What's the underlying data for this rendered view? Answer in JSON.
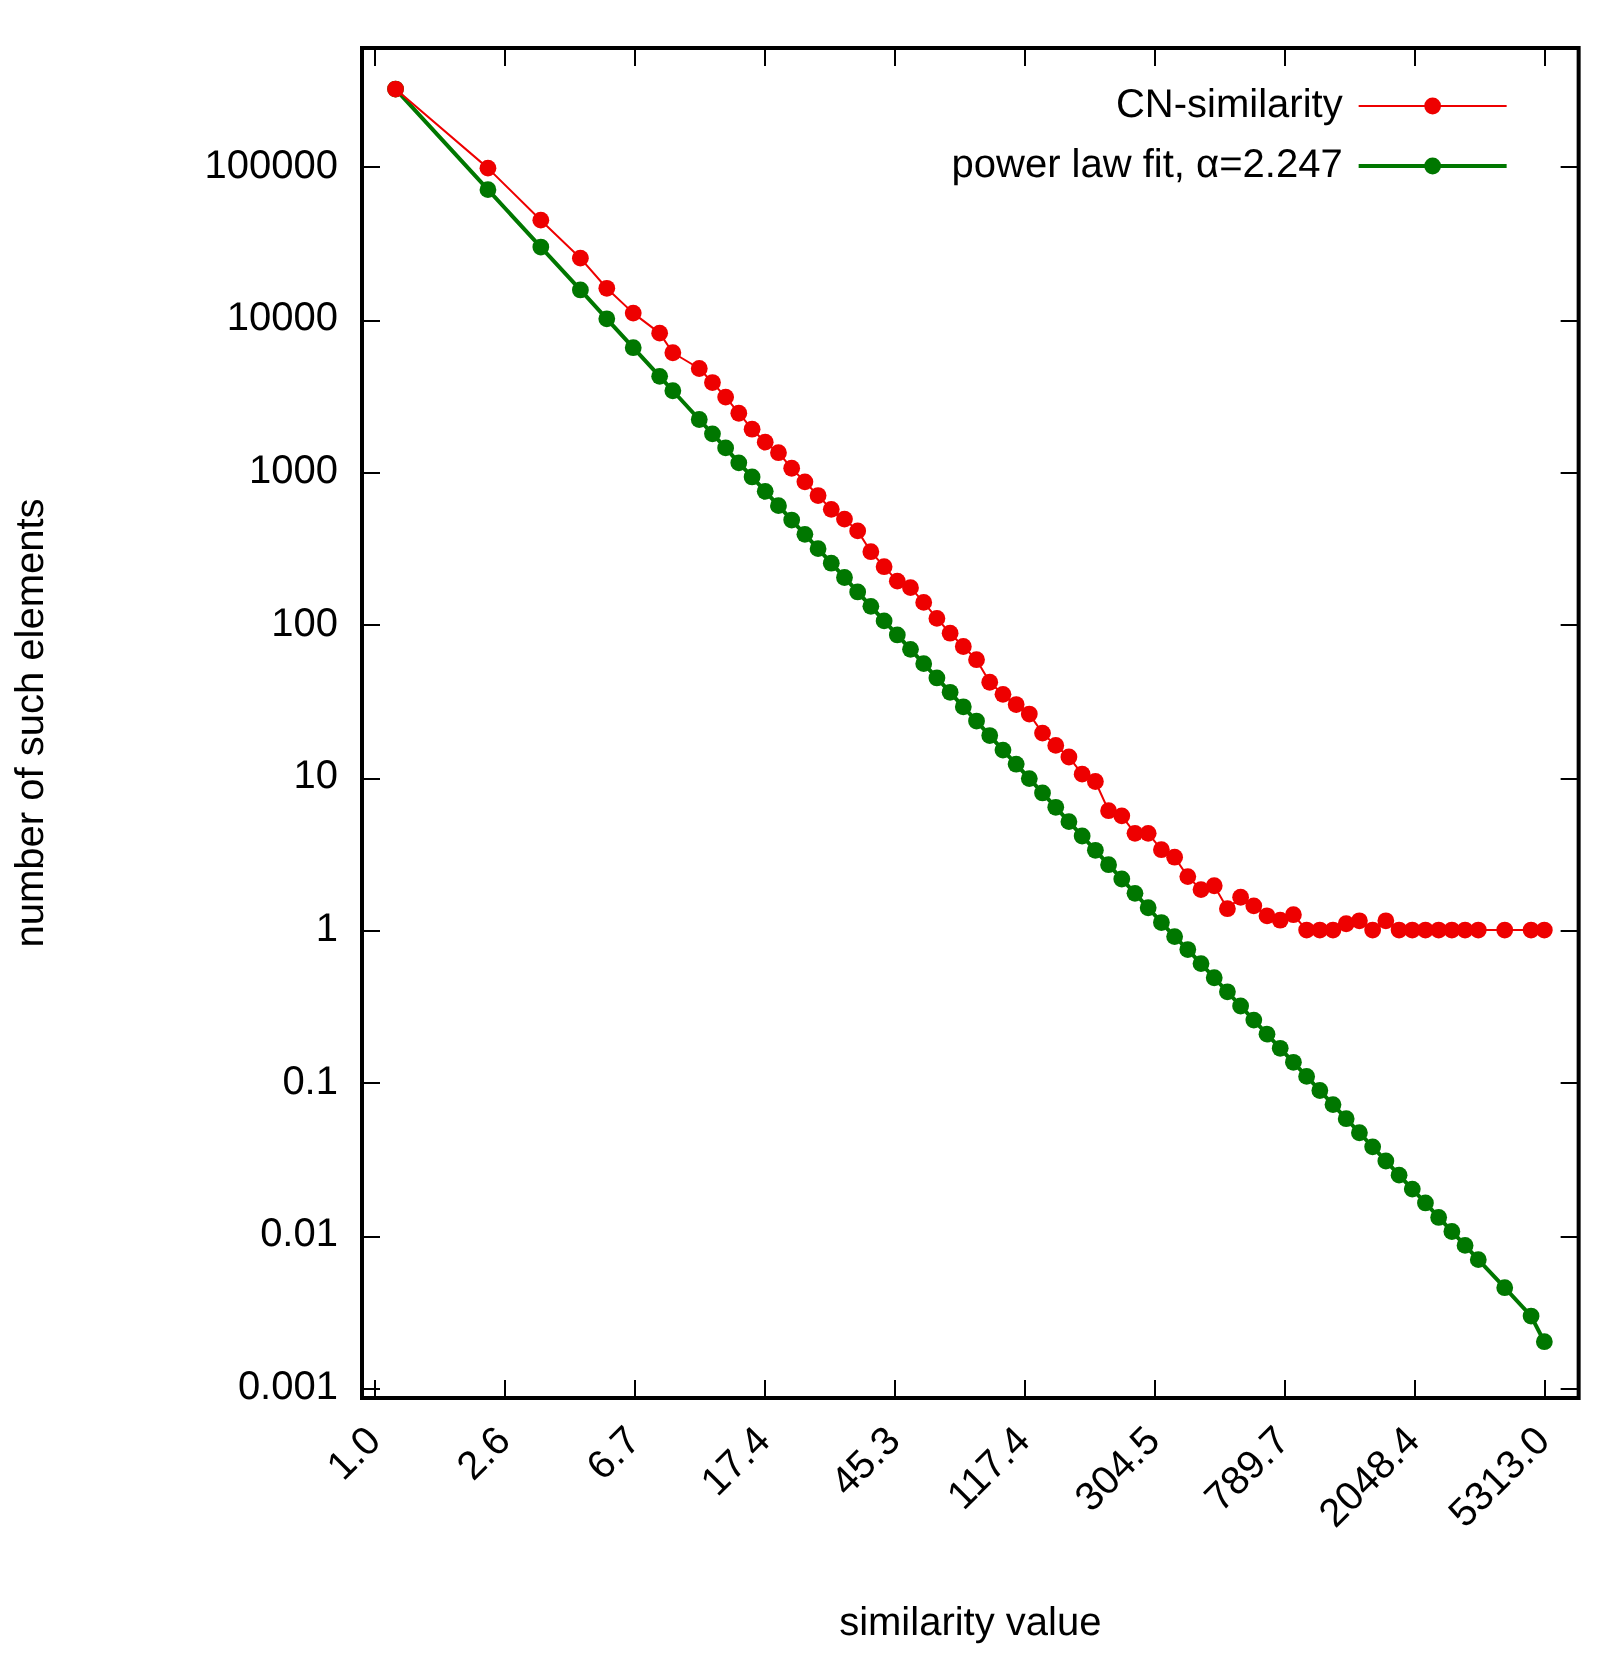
{
  "chart_data": {
    "type": "line",
    "xlabel": "similarity value",
    "ylabel": "number of such elements",
    "log": "xy",
    "grid": false,
    "legend": "top right",
    "marker": "circle",
    "line_style": "solid",
    "xlim": [
      0.91,
      6860
    ],
    "ylim": [
      0.00086,
      600000
    ],
    "xticks": [
      {
        "value": 1,
        "label": "1.0"
      },
      {
        "value": 2.594,
        "label": "2.6"
      },
      {
        "value": 6.727,
        "label": "6.7"
      },
      {
        "value": 17.45,
        "label": "17.4"
      },
      {
        "value": 45.26,
        "label": "45.3"
      },
      {
        "value": 117.4,
        "label": "117.4"
      },
      {
        "value": 304.5,
        "label": "304.5"
      },
      {
        "value": 789.7,
        "label": "789.7"
      },
      {
        "value": 2048.4,
        "label": "2048.4"
      },
      {
        "value": 5313,
        "label": "5313.0"
      }
    ],
    "yticks": [
      0.001,
      0.01,
      0.1,
      1,
      10,
      100,
      1000,
      10000,
      100000
    ],
    "x": [
      1.164,
      2.293,
      3.38,
      4.519,
      5.485,
      6.659,
      8.084,
      8.905,
      10.81,
      11.91,
      13.12,
      14.45,
      15.93,
      17.54,
      19.33,
      21.3,
      23.47,
      25.85,
      28.48,
      31.38,
      34.57,
      38.08,
      41.97,
      46.24,
      50.94,
      56.12,
      61.83,
      68.12,
      75.05,
      82.69,
      91.1,
      100.4,
      110.6,
      121.8,
      134.2,
      147.9,
      162.9,
      179.5,
      197.8,
      217.9,
      240.1,
      264.5,
      291.4,
      321.1,
      353.8,
      389.7,
      429.4,
      473.1,
      521.2,
      574.2,
      632.6,
      696.9,
      767.8,
      845.9,
      932,
      1027,
      1131,
      1246,
      1373,
      1513,
      1667,
      1837,
      2024,
      2229,
      2456,
      2706,
      2981,
      3285,
      3988,
      4839,
      5333
    ],
    "series": [
      {
        "name": "CN-similarity",
        "color": "#ee0000",
        "values": [
          323000,
          98000,
          44700,
          25200,
          16000,
          11000,
          8130,
          6050,
          4770,
          3860,
          3100,
          2430,
          1910,
          1570,
          1340,
          1060,
          863,
          702,
          570,
          492,
          412,
          301,
          240,
          193,
          175,
          140,
          110,
          88,
          72,
          59,
          42,
          35,
          30,
          26,
          19.5,
          16.2,
          13.6,
          10.5,
          9.4,
          6.05,
          5.6,
          4.3,
          4.3,
          3.36,
          3.0,
          2.24,
          1.84,
          1.95,
          1.38,
          1.64,
          1.44,
          1.24,
          1.16,
          1.26,
          1,
          1,
          1,
          1.1,
          1.15,
          1,
          1.15,
          1,
          1,
          1,
          1,
          1,
          1,
          1,
          1,
          1,
          1
        ]
      },
      {
        "name": "power law fit, α=2.247",
        "color": "#007700",
        "values": [
          323000,
          70800,
          29800,
          15600,
          10100,
          6530,
          4240,
          3410,
          2210,
          1780,
          1440,
          1150,
          929,
          748,
          603,
          485,
          391,
          315,
          253,
          204,
          164,
          132,
          106,
          85.7,
          69,
          55.6,
          44.8,
          36.1,
          29,
          23.4,
          18.8,
          15.1,
          12.2,
          9.82,
          7.91,
          6.37,
          5.13,
          4.13,
          3.33,
          2.68,
          2.16,
          1.74,
          1.4,
          1.12,
          0.906,
          0.745,
          0.603,
          0.487,
          0.394,
          0.318,
          0.257,
          0.208,
          0.168,
          0.136,
          0.11,
          0.0889,
          0.0719,
          0.0581,
          0.047,
          0.038,
          0.0307,
          0.0248,
          0.0201,
          0.0163,
          0.0131,
          0.0106,
          0.00859,
          0.00693,
          0.00454,
          0.00296,
          0.00201
        ]
      }
    ]
  }
}
